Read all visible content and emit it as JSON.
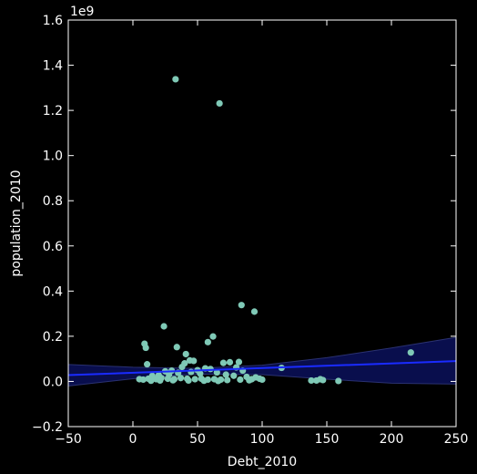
{
  "chart_data": {
    "type": "scatter",
    "title": "",
    "xlabel": "Debt_2010",
    "ylabel": "population_2010",
    "y_offset_label": "1e9",
    "xlim": [
      -50,
      250
    ],
    "ylim": [
      -0.2,
      1.6
    ],
    "xticks": [
      -50,
      0,
      50,
      100,
      150,
      200,
      250
    ],
    "xtick_labels": [
      "−50",
      "0",
      "50",
      "100",
      "150",
      "200",
      "250"
    ],
    "yticks": [
      -0.2,
      0.0,
      0.2,
      0.4,
      0.6,
      0.8,
      1.0,
      1.2,
      1.4,
      1.6
    ],
    "ytick_labels": [
      "−0.2",
      "0.0",
      "0.2",
      "0.4",
      "0.6",
      "0.8",
      "1.0",
      "1.2",
      "1.4",
      "1.6"
    ],
    "grid": false,
    "legend": "none",
    "colors": {
      "background": "#000000",
      "points": "#7fc9b6",
      "regression_line": "#1a2bff",
      "confidence_band": "#0a0f55",
      "axes": "#ffffff"
    },
    "series": [
      {
        "values": [
          [
            33,
            1.338
          ],
          [
            67,
            1.231
          ],
          [
            84,
            0.338
          ],
          [
            94,
            0.309
          ],
          [
            24,
            0.244
          ],
          [
            62,
            0.199
          ],
          [
            9,
            0.167
          ],
          [
            10,
            0.149
          ],
          [
            58,
            0.174
          ],
          [
            34,
            0.152
          ],
          [
            41,
            0.121
          ],
          [
            215,
            0.128
          ],
          [
            115,
            0.06
          ],
          [
            44,
            0.093
          ],
          [
            47,
            0.091
          ],
          [
            82,
            0.086
          ],
          [
            75,
            0.085
          ],
          [
            70,
            0.082
          ],
          [
            11,
            0.076
          ],
          [
            40,
            0.08
          ],
          [
            38,
            0.064
          ],
          [
            56,
            0.058
          ],
          [
            60,
            0.055
          ],
          [
            80,
            0.062
          ],
          [
            85,
            0.048
          ],
          [
            30,
            0.048
          ],
          [
            25,
            0.045
          ],
          [
            50,
            0.05
          ],
          [
            45,
            0.042
          ],
          [
            65,
            0.04
          ],
          [
            52,
            0.035
          ],
          [
            35,
            0.038
          ],
          [
            28,
            0.03
          ],
          [
            20,
            0.028
          ],
          [
            15,
            0.025
          ],
          [
            72,
            0.03
          ],
          [
            78,
            0.025
          ],
          [
            88,
            0.02
          ],
          [
            95,
            0.018
          ],
          [
            98,
            0.012
          ],
          [
            5,
            0.01
          ],
          [
            8,
            0.008
          ],
          [
            12,
            0.012
          ],
          [
            18,
            0.01
          ],
          [
            22,
            0.015
          ],
          [
            27,
            0.012
          ],
          [
            32,
            0.01
          ],
          [
            37,
            0.015
          ],
          [
            42,
            0.012
          ],
          [
            48,
            0.01
          ],
          [
            53,
            0.012
          ],
          [
            58,
            0.008
          ],
          [
            63,
            0.01
          ],
          [
            68,
            0.008
          ],
          [
            73,
            0.006
          ],
          [
            83,
            0.008
          ],
          [
            90,
            0.005
          ],
          [
            92,
            0.01
          ],
          [
            100,
            0.008
          ],
          [
            138,
            0.004
          ],
          [
            142,
            0.004
          ],
          [
            145,
            0.01
          ],
          [
            147,
            0.006
          ],
          [
            159,
            0.002
          ],
          [
            14,
            0.003
          ],
          [
            21,
            0.004
          ],
          [
            31,
            0.005
          ],
          [
            43,
            0.004
          ],
          [
            55,
            0.003
          ],
          [
            66,
            0.002
          ]
        ]
      }
    ],
    "regression": {
      "x": [
        -50,
        250
      ],
      "y": [
        0.028,
        0.09
      ]
    },
    "confidence_band": {
      "x": [
        -50,
        0,
        50,
        100,
        150,
        200,
        250
      ],
      "upper": [
        0.075,
        0.063,
        0.058,
        0.072,
        0.105,
        0.148,
        0.195
      ],
      "lower": [
        -0.02,
        0.012,
        0.032,
        0.03,
        0.01,
        -0.008,
        -0.012
      ]
    }
  }
}
